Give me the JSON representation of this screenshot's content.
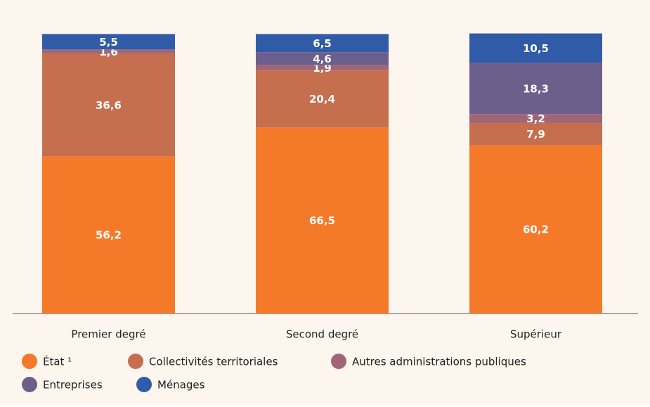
{
  "chart_data": {
    "type": "bar",
    "stacked": true,
    "categories": [
      "Premier degré",
      "Second degré",
      "Supérieur"
    ],
    "ylim": [
      0,
      100
    ],
    "series": [
      {
        "name": "État ¹",
        "color": "#f47a2a",
        "values": [
          56.2,
          66.5,
          60.2
        ],
        "value_labels": [
          "56,2",
          "66,5",
          "60,2"
        ]
      },
      {
        "name": "Collectivités territoriales",
        "color": "#c56f4f",
        "values": [
          36.6,
          20.4,
          7.9
        ],
        "value_labels": [
          "36,6",
          "20,4",
          "7,9"
        ]
      },
      {
        "name": "Autres administrations publiques",
        "color": "#a06676",
        "values": [
          1.6,
          1.9,
          3.2
        ],
        "value_labels": [
          "1,6",
          "1,9",
          "3,2"
        ]
      },
      {
        "name": "Entreprises",
        "color": "#6d5f8b",
        "values": [
          null,
          4.6,
          18.3
        ],
        "value_labels": [
          null,
          "4,6",
          "18,3"
        ]
      },
      {
        "name": "Ménages",
        "color": "#2f5ba8",
        "values": [
          5.5,
          6.5,
          10.5
        ],
        "value_labels": [
          "5,5",
          "6,5",
          "10,5"
        ]
      }
    ],
    "legend": "bottom"
  }
}
